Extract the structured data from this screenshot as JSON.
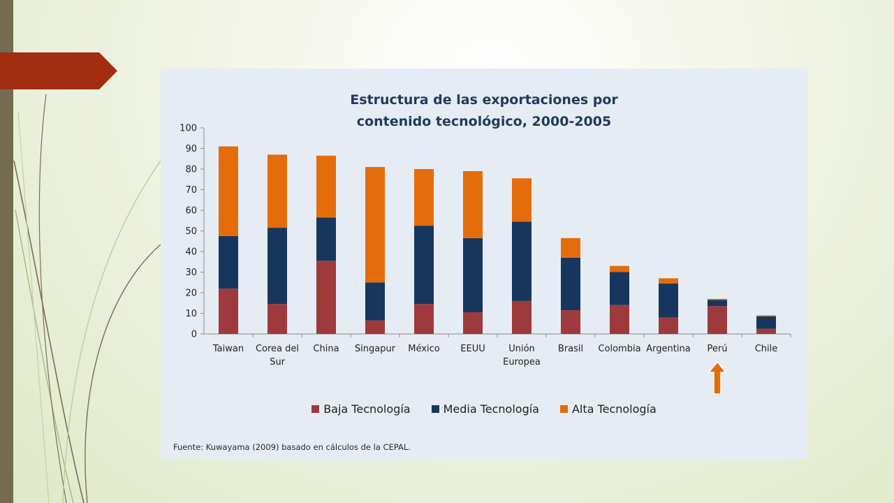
{
  "chart_data": {
    "type": "bar",
    "stacked": true,
    "title_lines": [
      "Estructura de las exportaciones por",
      "contenido tecnológico, 2000-2005"
    ],
    "categories": [
      "Taiwan",
      "Corea del Sur",
      "China",
      "Singapur",
      "México",
      "EEUU",
      "Unión Europea",
      "Brasil",
      "Colombia",
      "Argentina",
      "Perú",
      "Chile"
    ],
    "category_lines": [
      [
        "Taiwan"
      ],
      [
        "Corea del",
        "Sur"
      ],
      [
        "China"
      ],
      [
        "Singapur"
      ],
      [
        "México"
      ],
      [
        "EEUU"
      ],
      [
        "Unión",
        "Europea"
      ],
      [
        "Brasil"
      ],
      [
        "Colombia"
      ],
      [
        "Argentina"
      ],
      [
        "Perú"
      ],
      [
        "Chile"
      ]
    ],
    "series": [
      {
        "name": "Baja Tecnología",
        "color": "#9e3a3b",
        "values": [
          22,
          14.5,
          35.5,
          6.5,
          14.5,
          10.5,
          16,
          11.5,
          14,
          8,
          13.5,
          2.5
        ]
      },
      {
        "name": "Media Tecnología",
        "color": "#17365d",
        "values": [
          25.5,
          37,
          21,
          18.5,
          38,
          36,
          38.5,
          25.5,
          16,
          16.5,
          3,
          6
        ]
      },
      {
        "name": "Alta Tecnología",
        "color": "#e46c0a",
        "values": [
          43.5,
          35.5,
          30,
          56,
          27.5,
          32.5,
          21,
          9.5,
          3,
          2.5,
          0.5,
          0.5
        ]
      }
    ],
    "ylim": [
      0,
      100
    ],
    "yticks": [
      0,
      10,
      20,
      30,
      40,
      50,
      60,
      70,
      80,
      90,
      100
    ],
    "legend_position": "bottom",
    "highlight_category": "Perú",
    "highlight_marker": "up-arrow",
    "highlight_color": "#e46c0a",
    "source": "Fuente: Kuwayama (2009) basado en cálculos de la CEPAL."
  },
  "theme": {
    "left_bar_color": "#756b51",
    "banner_color": "#a12e11",
    "title_color": "#233a5a",
    "panel_color": "#e6ecf4"
  }
}
